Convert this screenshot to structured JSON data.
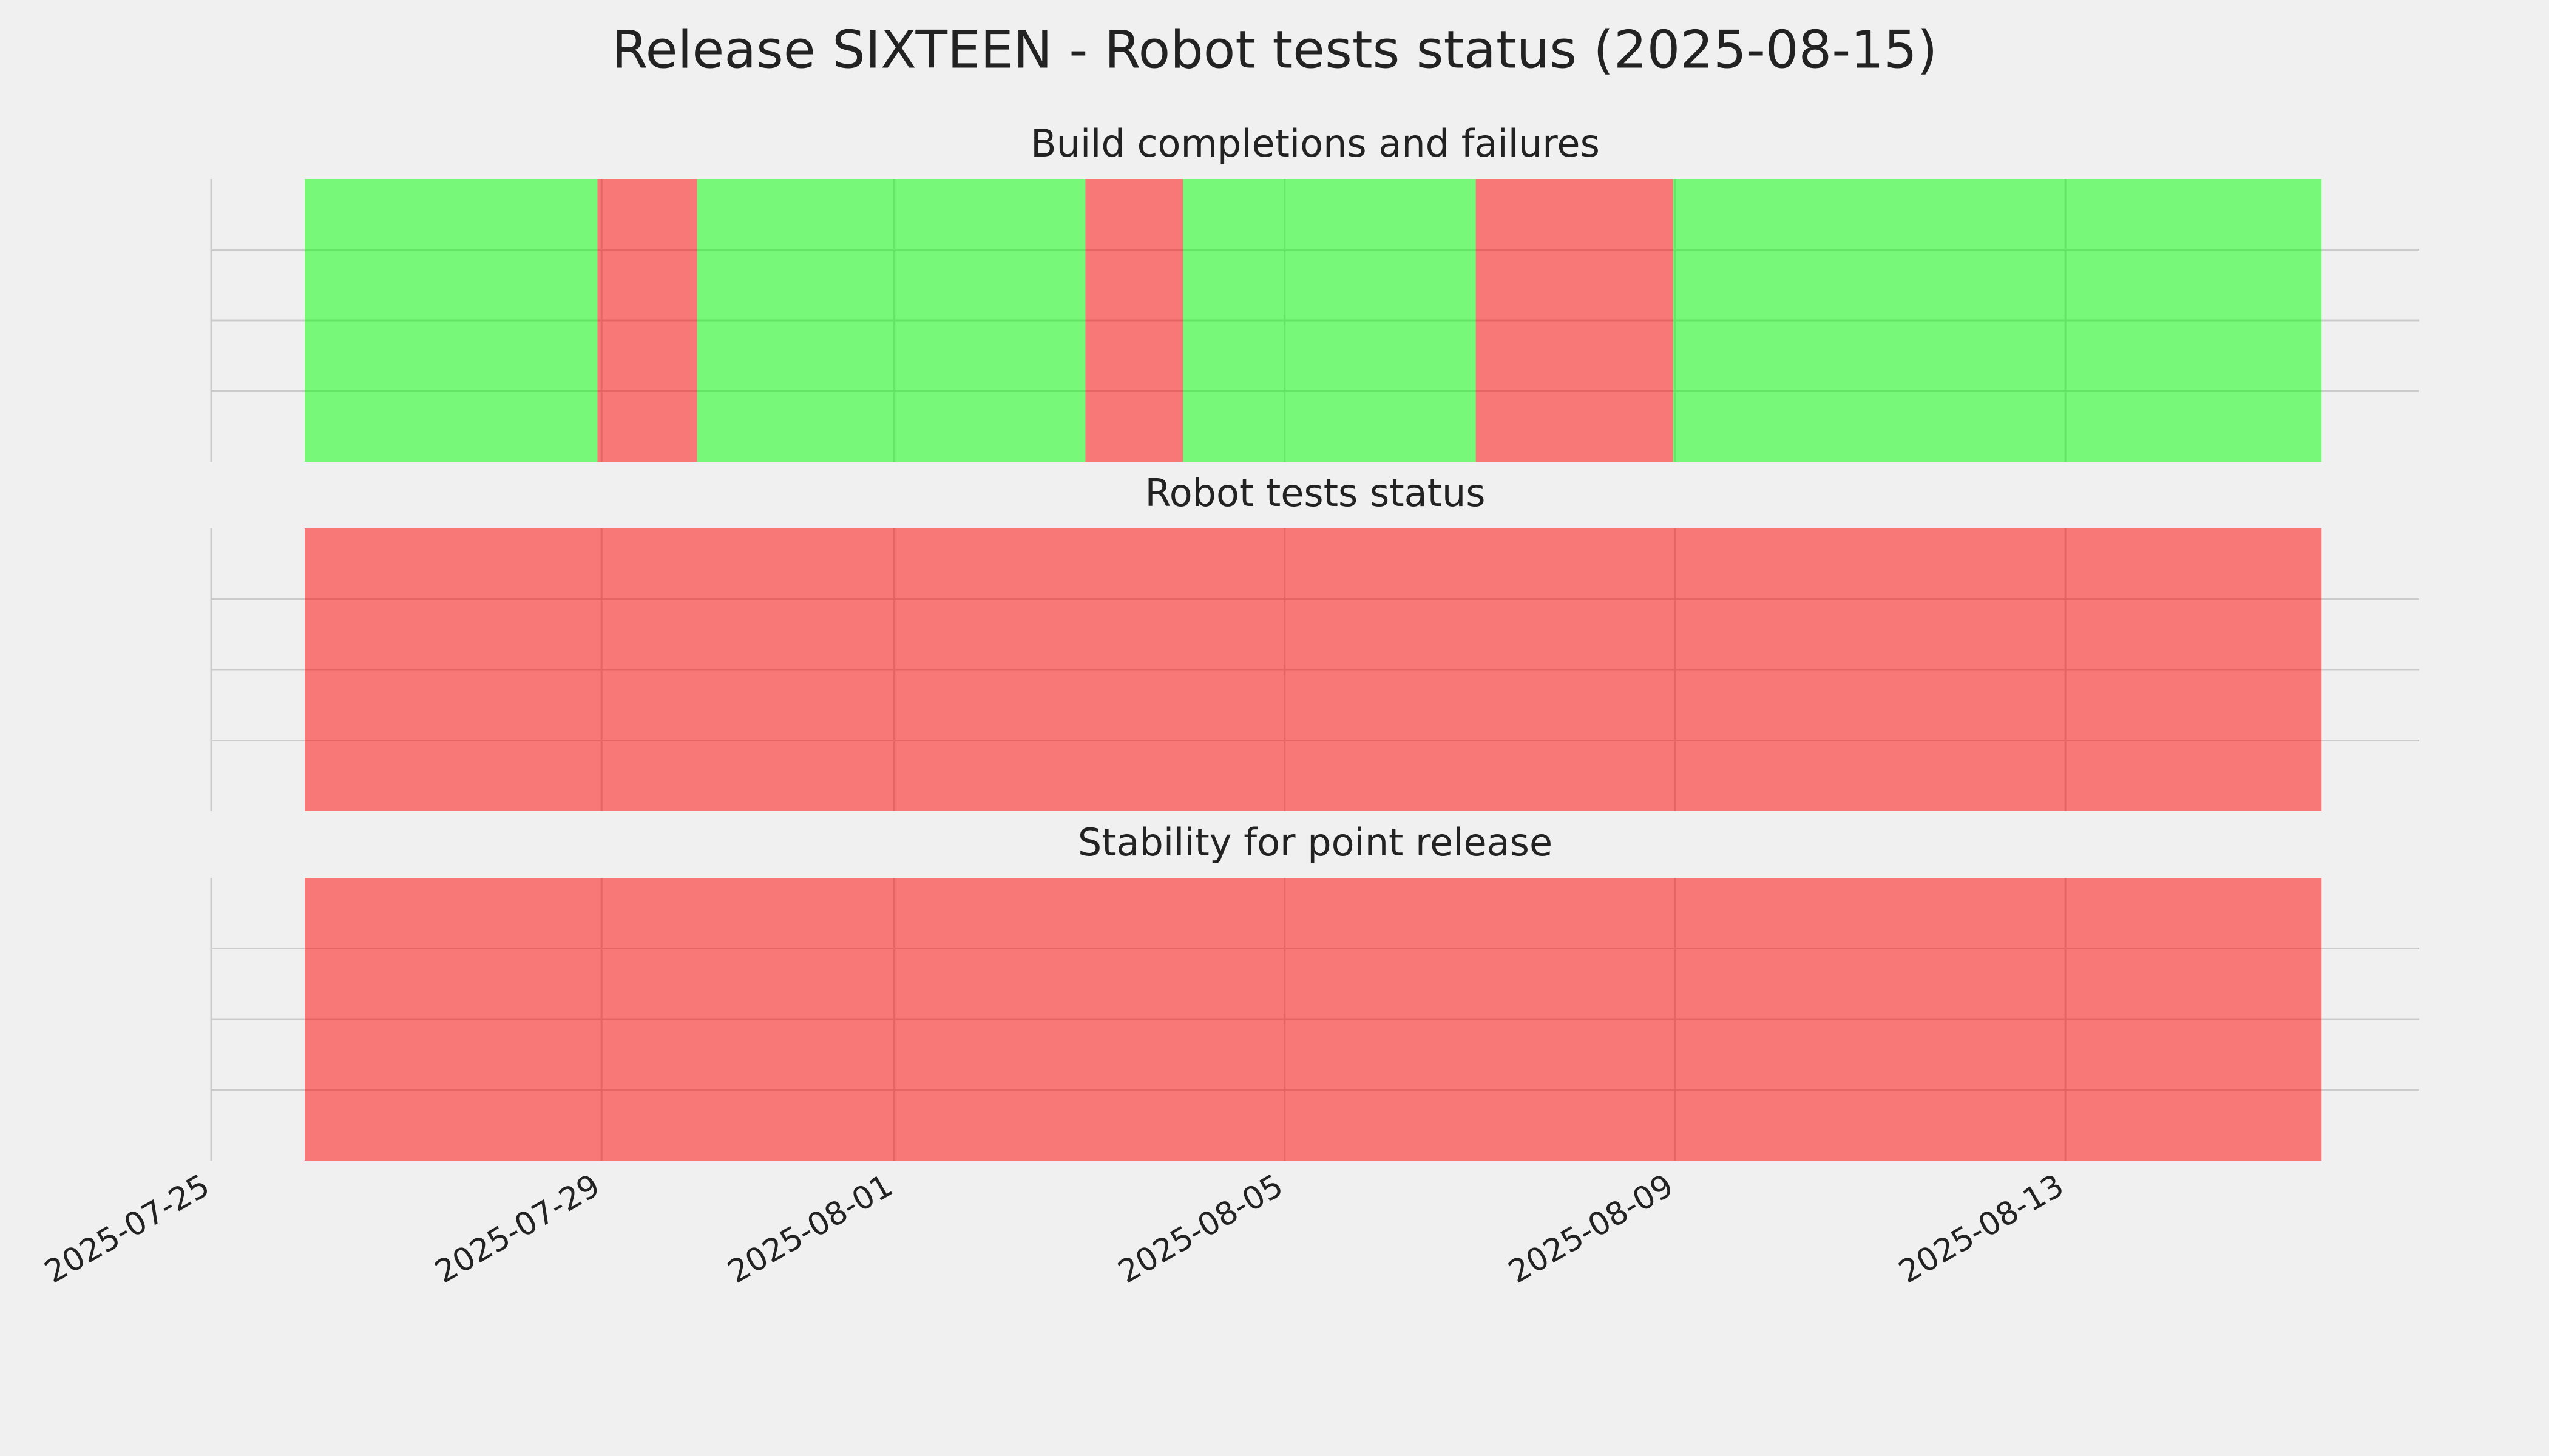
{
  "title": "Release SIXTEEN - Robot tests status (2025-08-15)",
  "chart_data": [
    {
      "type": "span",
      "title": "Build completions and failures",
      "xlim": [
        "2025-07-25T00:00",
        "2025-08-16T15:00"
      ],
      "xticks": [
        "2025-07-25",
        "2025-07-29",
        "2025-08-01",
        "2025-08-05",
        "2025-08-09",
        "2025-08-13"
      ],
      "ylim": [
        0,
        1
      ],
      "yticks": [
        0.25,
        0.5,
        0.75
      ],
      "grid": true,
      "spans": [
        {
          "start": "2025-07-25T23:00",
          "end": "2025-07-28T23:00",
          "color": "#00ff00"
        },
        {
          "start": "2025-07-28T23:00",
          "end": "2025-07-29T23:30",
          "color": "#ff0000"
        },
        {
          "start": "2025-07-29T23:30",
          "end": "2025-08-02T23:00",
          "color": "#00ff00"
        },
        {
          "start": "2025-08-02T23:00",
          "end": "2025-08-03T23:00",
          "color": "#ff0000"
        },
        {
          "start": "2025-08-03T23:00",
          "end": "2025-08-06T23:00",
          "color": "#00ff00"
        },
        {
          "start": "2025-08-06T23:00",
          "end": "2025-08-08T23:30",
          "color": "#ff0000"
        },
        {
          "start": "2025-08-08T23:30",
          "end": "2025-08-15T15:00",
          "color": "#00ff00"
        }
      ]
    },
    {
      "type": "span",
      "title": "Robot tests status",
      "xlim": [
        "2025-07-25T00:00",
        "2025-08-16T15:00"
      ],
      "xticks": [
        "2025-07-25",
        "2025-07-29",
        "2025-08-01",
        "2025-08-05",
        "2025-08-09",
        "2025-08-13"
      ],
      "ylim": [
        0,
        1
      ],
      "yticks": [
        0.25,
        0.5,
        0.75
      ],
      "grid": true,
      "spans": [
        {
          "start": "2025-07-25T23:00",
          "end": "2025-08-15T15:00",
          "color": "#ff0000"
        }
      ]
    },
    {
      "type": "span",
      "title": "Stability for point release",
      "xlim": [
        "2025-07-25T00:00",
        "2025-08-16T15:00"
      ],
      "xticks": [
        "2025-07-25",
        "2025-07-29",
        "2025-08-01",
        "2025-08-05",
        "2025-08-09",
        "2025-08-13"
      ],
      "ylim": [
        0,
        1
      ],
      "yticks": [
        0.25,
        0.5,
        0.75
      ],
      "grid": true,
      "spans": [
        {
          "start": "2025-07-25T23:00",
          "end": "2025-08-15T15:00",
          "color": "#ff0000"
        }
      ]
    }
  ]
}
